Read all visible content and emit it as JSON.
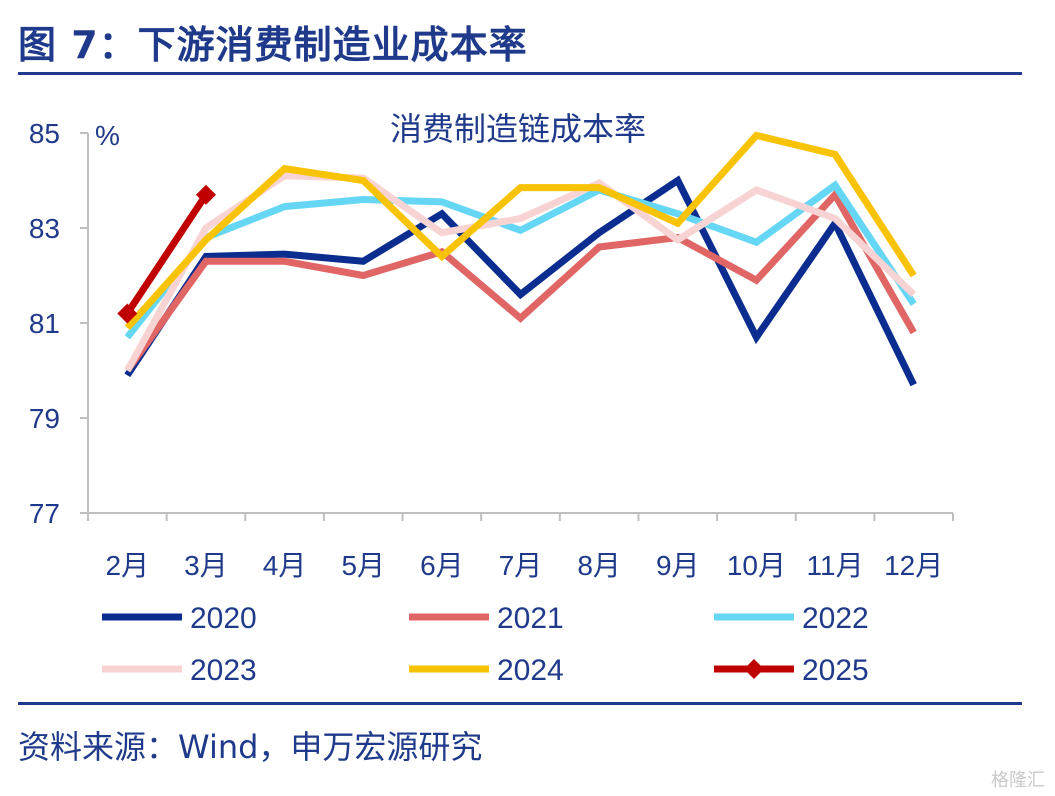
{
  "header": {
    "figure_title": "图 7：下游消费制造业成本率"
  },
  "footer": {
    "source": "资料来源：Wind，申万宏源研究",
    "watermark": "格隆汇"
  },
  "chart_data": {
    "type": "line",
    "title": "消费制造链成本率",
    "ylabel": "%",
    "ylim": [
      77,
      85
    ],
    "yticks": [
      77,
      79,
      81,
      83,
      85
    ],
    "categories": [
      "2月",
      "3月",
      "4月",
      "5月",
      "6月",
      "7月",
      "8月",
      "9月",
      "10月",
      "11月",
      "12月"
    ],
    "legend_position": "bottom",
    "grid": false,
    "series": [
      {
        "name": "2020",
        "color": "#0a2d8f",
        "marker": false,
        "values": [
          79.9,
          82.4,
          82.45,
          82.3,
          83.3,
          81.6,
          82.9,
          84.0,
          80.7,
          83.1,
          79.7
        ]
      },
      {
        "name": "2021",
        "color": "#e06666",
        "marker": false,
        "values": [
          80.0,
          82.3,
          82.3,
          82.0,
          82.5,
          81.1,
          82.6,
          82.8,
          81.9,
          83.7,
          80.8
        ]
      },
      {
        "name": "2022",
        "color": "#66d6f5",
        "marker": false,
        "values": [
          80.7,
          82.8,
          83.45,
          83.6,
          83.55,
          82.95,
          83.8,
          83.3,
          82.7,
          83.9,
          81.4
        ]
      },
      {
        "name": "2023",
        "color": "#f8d3d3",
        "marker": false,
        "values": [
          80.0,
          83.0,
          84.1,
          84.05,
          82.9,
          83.2,
          83.95,
          82.75,
          83.8,
          83.2,
          81.6
        ]
      },
      {
        "name": "2024",
        "color": "#f9c305",
        "marker": false,
        "values": [
          80.9,
          82.75,
          84.25,
          84.0,
          82.4,
          83.85,
          83.85,
          83.1,
          84.95,
          84.55,
          82.0
        ]
      },
      {
        "name": "2025",
        "color": "#c00000",
        "marker": true,
        "values": [
          81.2,
          83.7,
          null,
          null,
          null,
          null,
          null,
          null,
          null,
          null,
          null
        ]
      }
    ]
  }
}
